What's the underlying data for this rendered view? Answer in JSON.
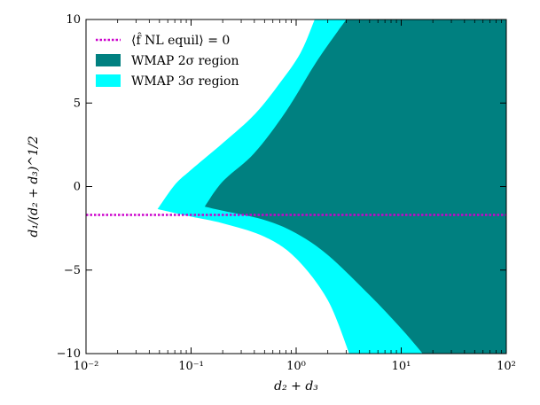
{
  "chart_data": {
    "type": "area",
    "title": "",
    "xlabel": "d₂ + d₃",
    "ylabel": "d₁/(d₂ + d₃)^1/2",
    "xscale": "log",
    "xlim": [
      0.01,
      100
    ],
    "ylim": [
      -10,
      10
    ],
    "x_ticks": [
      {
        "value": 0.01,
        "label": "10⁻²"
      },
      {
        "value": 0.1,
        "label": "10⁻¹"
      },
      {
        "value": 1,
        "label": "10⁰"
      },
      {
        "value": 10,
        "label": "10¹"
      },
      {
        "value": 100,
        "label": "10²"
      }
    ],
    "y_ticks": [
      {
        "value": -10,
        "label": "−10"
      },
      {
        "value": -5,
        "label": "−5"
      },
      {
        "value": 0,
        "label": "0"
      },
      {
        "value": 5,
        "label": "5"
      },
      {
        "value": 10,
        "label": "10"
      }
    ],
    "legend_position": "top-left",
    "series": [
      {
        "name": "WMAP 3σ region",
        "kind": "filled-region",
        "color": "#00ffff",
        "upper_boundary": [
          [
            0.048,
            -1.35
          ],
          [
            0.07,
            0.1
          ],
          [
            0.1,
            1.0
          ],
          [
            0.2,
            2.6
          ],
          [
            0.4,
            4.3
          ],
          [
            0.7,
            6.2
          ],
          [
            1.1,
            8.0
          ],
          [
            1.5,
            10.0
          ]
        ],
        "right_upper_boundary": [
          [
            3.0,
            10.0
          ]
        ],
        "lower_boundary": [
          [
            0.048,
            -1.35
          ],
          [
            0.1,
            -1.8
          ],
          [
            0.2,
            -2.2
          ],
          [
            0.5,
            -3.0
          ],
          [
            1.0,
            -4.3
          ],
          [
            2.0,
            -6.8
          ],
          [
            3.2,
            -10.0
          ]
        ],
        "right_lower_boundary": [
          [
            16.0,
            -10.0
          ]
        ]
      },
      {
        "name": "WMAP 2σ region",
        "kind": "filled-region",
        "color": "#008080",
        "upper_boundary": [
          [
            0.135,
            -1.2
          ],
          [
            0.2,
            0.3
          ],
          [
            0.4,
            2.0
          ],
          [
            0.8,
            4.5
          ],
          [
            1.5,
            7.3
          ],
          [
            2.3,
            9.0
          ],
          [
            3.0,
            10.0
          ]
        ],
        "lower_boundary": [
          [
            0.135,
            -1.2
          ],
          [
            0.2,
            -1.45
          ],
          [
            0.5,
            -2.0
          ],
          [
            1.0,
            -2.8
          ],
          [
            2.0,
            -4.1
          ],
          [
            5.0,
            -6.5
          ],
          [
            10.0,
            -8.5
          ],
          [
            16.0,
            -10.0
          ]
        ],
        "extends_to_x": 100
      },
      {
        "name": "⟨f̂ NL equil⟩ = 0",
        "kind": "hline",
        "color": "#cc00cc",
        "style": "dotted",
        "y": -1.7
      }
    ],
    "legend": [
      {
        "label": "⟨f̂ NL equil⟩ = 0",
        "kind": "line",
        "color": "#cc00cc"
      },
      {
        "label": "WMAP 2σ region",
        "kind": "patch",
        "color": "#008080"
      },
      {
        "label": "WMAP 3σ region",
        "kind": "patch",
        "color": "#00ffff"
      }
    ]
  }
}
